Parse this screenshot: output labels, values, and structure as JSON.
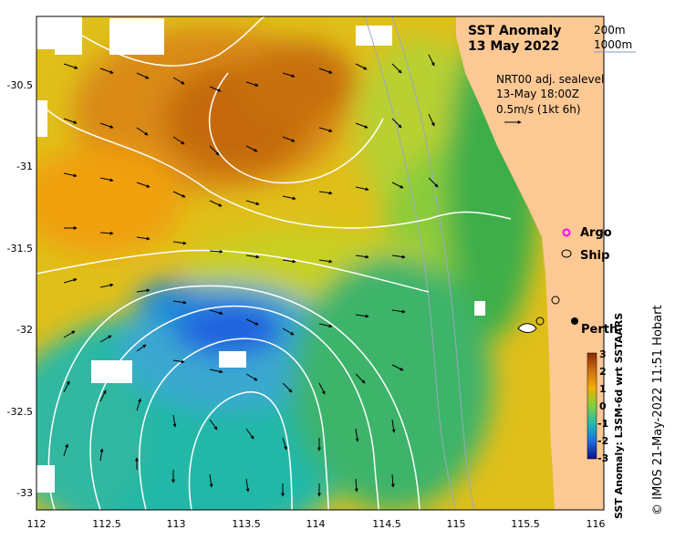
{
  "title": {
    "line1": "SST Anomaly",
    "line2": "13 May 2022"
  },
  "depth_legend": {
    "line1": "200m",
    "line2": "1000m"
  },
  "current_info": {
    "line1": "NRT00 adj. sealevel",
    "line2": "13-May 18:00Z",
    "line3": "0.5m/s (1kt 6h)"
  },
  "markers": {
    "argo": "Argo",
    "ship": "Ship"
  },
  "place_label": "Perth",
  "colorbar": {
    "label": "SST Anomaly: L3SM-6d wrt SSTAARS",
    "ticks": [
      "3",
      "2",
      "1",
      "0",
      "-1",
      "-2",
      "-3"
    ],
    "range": [
      -3,
      3
    ]
  },
  "credit": "© IMOS 21-May-2022 11:51 Hobart",
  "axes": {
    "lon_ticks": [
      "112",
      "112.5",
      "113",
      "113.5",
      "114",
      "114.5",
      "115",
      "115.5",
      "116"
    ],
    "lat_ticks": [
      "-30.5",
      "-31",
      "-31.5",
      "-32",
      "-32.5",
      "-33"
    ],
    "lon_range": [
      112,
      116
    ],
    "lat_range": [
      -33.1,
      -30.2
    ]
  },
  "colors": {
    "land": "#fcc894",
    "ocean_warm": "#d06a10",
    "ocean_cool": "#20b8c0",
    "cold_eddy": "#1e64e0",
    "argo": "#ff00ff"
  }
}
